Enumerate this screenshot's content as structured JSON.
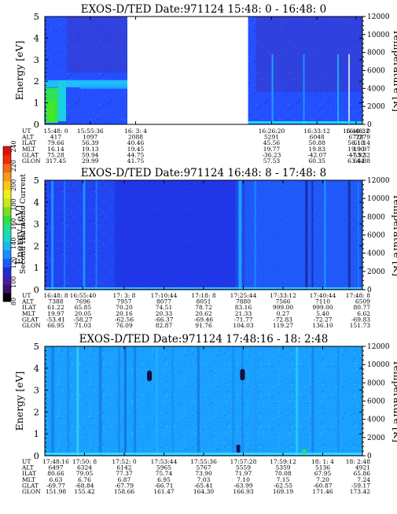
{
  "chart_data": [
    {
      "type": "heatmap",
      "title": "EXOS-D/TED   Date:971124  15:48: 0 - 16:48: 0",
      "ylabel": "Energy [eV]",
      "y2label": "Temperature [K]",
      "ylim": [
        0,
        5
      ],
      "y2lim": [
        0,
        12000
      ],
      "yticks": [
        "0",
        "1",
        "2",
        "3",
        "4",
        "5"
      ],
      "y2ticks": [
        "0",
        "2000",
        "4000",
        "6000",
        "8000",
        "10000",
        "12000"
      ],
      "data_gap": [
        0.26,
        0.64
      ],
      "row_labels": [
        "UT",
        "ALT",
        "ILAT",
        "MLT",
        "GLAT",
        "GLON"
      ],
      "columns": [
        {
          "pos": 0.0,
          "values": [
            "15:48: 0",
            "417",
            "79.66",
            "16.14",
            "75.28",
            "317.45"
          ]
        },
        {
          "pos": 0.143,
          "values": [
            "15:55:36",
            "1097",
            "56.39",
            "19.13",
            "59.94",
            "29.99"
          ]
        },
        {
          "pos": 0.286,
          "values": [
            "16: 3: 4",
            "2088",
            "40.46",
            "19.45",
            "44.75",
            "41.75"
          ]
        },
        {
          "pos": 0.714,
          "values": [
            "16:26:20",
            "5291",
            "45.56",
            "19.77",
            "-36.23",
            "57.53"
          ]
        },
        {
          "pos": 0.857,
          "values": [
            "16:33:12",
            "6048",
            "50.88",
            "19.83",
            "-42.07",
            "60.35"
          ]
        },
        {
          "pos": 0.98,
          "values": [
            "16:40:32",
            "6728",
            "56.18",
            "19.90",
            "-47.92",
            "63.44"
          ]
        },
        {
          "pos": 1.0,
          "values": [
            "16:48: 0",
            "7279",
            "61.14",
            "19.97",
            "-53.32",
            "66.88"
          ]
        }
      ]
    },
    {
      "type": "heatmap",
      "title": "EXOS-D/TED   Date:971124  16:48: 8 - 17:48: 8",
      "ylabel": "Energy [eV]",
      "y2label": "Temperature [K]",
      "ylim": [
        0,
        5
      ],
      "y2lim": [
        0,
        12000
      ],
      "yticks": [
        "0",
        "1",
        "2",
        "3",
        "4",
        "5"
      ],
      "y2ticks": [
        "0",
        "2000",
        "4000",
        "6000",
        "8000",
        "10000",
        "12000"
      ],
      "row_labels": [
        "UT",
        "ALT",
        "ILAT",
        "MLT",
        "GLAT",
        "GLON"
      ],
      "columns": [
        {
          "pos": 0.0,
          "values": [
            "16:48: 8",
            "7388",
            "61.22",
            "19.97",
            "-53.41",
            "66.95"
          ]
        },
        {
          "pos": 0.12,
          "values": [
            "16:55:40",
            "7696",
            "65.85",
            "20.05",
            "-58.27",
            "71.03"
          ]
        },
        {
          "pos": 0.25,
          "values": [
            "17: 3: 8",
            "7957",
            "70.20",
            "20.16",
            "-62.56",
            "76.09"
          ]
        },
        {
          "pos": 0.375,
          "values": [
            "17:10:44",
            "8077",
            "74.51",
            "20.33",
            "-66.37",
            "82.87"
          ]
        },
        {
          "pos": 0.5,
          "values": [
            "17:18: 8",
            "8051",
            "78.72",
            "20.62",
            "-69.46",
            "91.76"
          ]
        },
        {
          "pos": 0.625,
          "values": [
            "17:25:44",
            "7880",
            "83.16",
            "21.33",
            "-71.77",
            "104.03"
          ]
        },
        {
          "pos": 0.75,
          "values": [
            "17:33:12",
            "7566",
            "999.00",
            "0.27",
            "-72.83",
            "119.27"
          ]
        },
        {
          "pos": 0.875,
          "values": [
            "17:40:44",
            "7110",
            "999.00",
            "5.40",
            "-72.27",
            "136.10"
          ]
        },
        {
          "pos": 1.0,
          "values": [
            "17:48: 8",
            "6509",
            "80.77",
            "6.62",
            "-69.83",
            "151.73"
          ]
        }
      ]
    },
    {
      "type": "heatmap",
      "title": "EXOS-D/TED   Date:971124  17:48:16 - 18: 2:48",
      "ylabel": "Energy [eV]",
      "y2label": "Temperature [K]",
      "ylim": [
        0,
        5
      ],
      "y2lim": [
        0,
        12000
      ],
      "yticks": [
        "0",
        "1",
        "2",
        "3",
        "4",
        "5"
      ],
      "y2ticks": [
        "0",
        "2000",
        "4000",
        "6000",
        "8000",
        "10000",
        "12000"
      ],
      "row_labels": [
        "UT",
        "ALT",
        "ILAT",
        "MLT",
        "GLAT",
        "GLON"
      ],
      "columns": [
        {
          "pos": 0.0,
          "values": [
            "17:48:16",
            "6497",
            "80.66",
            "6.63",
            "-69.77",
            "151.98"
          ]
        },
        {
          "pos": 0.125,
          "values": [
            "17:50: 8",
            "6324",
            "79.05",
            "6.76",
            "-68.84",
            "155.42"
          ]
        },
        {
          "pos": 0.25,
          "values": [
            "17:52: 0",
            "6142",
            "77.37",
            "6.87",
            "-67.79",
            "158.66"
          ]
        },
        {
          "pos": 0.375,
          "values": [
            "17:53:44",
            "5965",
            "75.74",
            "6.95",
            "-66.71",
            "161.47"
          ]
        },
        {
          "pos": 0.5,
          "values": [
            "17:55:36",
            "5767",
            "73.90",
            "7.03",
            "-65.41",
            "164.30"
          ]
        },
        {
          "pos": 0.625,
          "values": [
            "17:57:28",
            "5559",
            "71.97",
            "7.10",
            "-63.99",
            "166.93"
          ]
        },
        {
          "pos": 0.75,
          "values": [
            "17:59:12",
            "5359",
            "70.08",
            "7.15",
            "-62.55",
            "169.19"
          ]
        },
        {
          "pos": 0.875,
          "values": [
            "18: 1: 4",
            "5136",
            "67.95",
            "7.20",
            "-60.87",
            "171.46"
          ]
        },
        {
          "pos": 1.0,
          "values": [
            "18: 2:48",
            "4921",
            "65.86",
            "7.24",
            "-59.17",
            "173.42"
          ]
        }
      ]
    }
  ],
  "colorbar": {
    "label": "Second Harmonic Current",
    "ticks": [
      "80",
      "100",
      "120",
      "140",
      "160",
      "180",
      "200",
      "220",
      "240"
    ],
    "colors": [
      "#000000",
      "#3a1070",
      "#4a1ca8",
      "#1c2fd8",
      "#1a5cff",
      "#1a8cff",
      "#19b9ef",
      "#1ad8c8",
      "#20e28e",
      "#2ce23c",
      "#7ae020",
      "#c8e818",
      "#f0f018",
      "#f8c818",
      "#f89a18",
      "#f86a18",
      "#f02a10",
      "#e01010"
    ]
  }
}
